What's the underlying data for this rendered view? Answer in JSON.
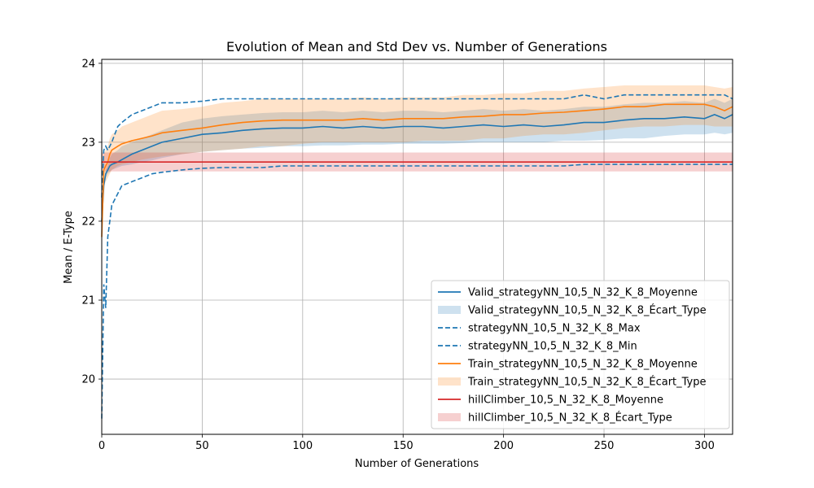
{
  "chart_data": {
    "type": "line",
    "title": "Evolution of Mean and Std Dev vs. Number of Generations",
    "xlabel": "Number of Generations",
    "ylabel": "Mean / E-Type",
    "xlim": [
      0,
      314
    ],
    "ylim": [
      19.3,
      24.05
    ],
    "xticks": [
      0,
      50,
      100,
      150,
      200,
      250,
      300
    ],
    "yticks": [
      20,
      21,
      22,
      23,
      24
    ],
    "grid": true,
    "legend_position": "lower-right",
    "colors": {
      "valid": "#1f77b4",
      "train": "#ff7f0e",
      "hill": "#d62728"
    },
    "series": [
      {
        "name": "Valid_strategyNN_10,5_N_32_K_8_Moyenne",
        "style": "solid",
        "color": "#1f77b4",
        "x": [
          0,
          1,
          2,
          3,
          4,
          5,
          8,
          10,
          15,
          20,
          25,
          30,
          40,
          50,
          60,
          70,
          80,
          90,
          100,
          110,
          120,
          130,
          140,
          150,
          160,
          170,
          180,
          190,
          200,
          210,
          220,
          230,
          240,
          250,
          260,
          270,
          280,
          290,
          300,
          305,
          310,
          314
        ],
        "y": [
          22.0,
          22.45,
          22.6,
          22.65,
          22.7,
          22.72,
          22.75,
          22.78,
          22.85,
          22.9,
          22.95,
          23.0,
          23.05,
          23.1,
          23.12,
          23.15,
          23.17,
          23.18,
          23.18,
          23.2,
          23.18,
          23.2,
          23.18,
          23.2,
          23.2,
          23.18,
          23.2,
          23.22,
          23.2,
          23.22,
          23.2,
          23.22,
          23.25,
          23.25,
          23.28,
          23.3,
          23.3,
          23.32,
          23.3,
          23.35,
          23.3,
          23.35
        ]
      },
      {
        "name": "Valid_strategyNN_10,5_N_32_K_8_Écart_Type",
        "style": "band",
        "color": "#1f77b4",
        "x": [
          0,
          1,
          2,
          3,
          4,
          5,
          8,
          10,
          15,
          20,
          25,
          30,
          40,
          50,
          60,
          70,
          80,
          90,
          100,
          110,
          120,
          130,
          140,
          150,
          160,
          170,
          180,
          190,
          200,
          210,
          220,
          230,
          240,
          250,
          260,
          270,
          280,
          290,
          300,
          305,
          310,
          314
        ],
        "lower": [
          21.8,
          22.5,
          22.55,
          22.6,
          22.62,
          22.65,
          22.68,
          22.7,
          22.72,
          22.75,
          22.77,
          22.8,
          22.85,
          22.88,
          22.9,
          22.92,
          22.93,
          22.95,
          22.95,
          22.96,
          22.96,
          22.97,
          22.97,
          22.98,
          22.98,
          22.98,
          22.99,
          23.0,
          23.0,
          23.0,
          23.0,
          23.02,
          23.02,
          23.03,
          23.05,
          23.05,
          23.08,
          23.1,
          23.1,
          23.12,
          23.1,
          23.12
        ],
        "upper": [
          22.2,
          22.5,
          22.65,
          22.7,
          22.8,
          22.85,
          22.9,
          22.95,
          23.0,
          23.05,
          23.1,
          23.15,
          23.25,
          23.3,
          23.33,
          23.35,
          23.37,
          23.38,
          23.38,
          23.4,
          23.38,
          23.4,
          23.38,
          23.4,
          23.4,
          23.38,
          23.4,
          23.42,
          23.4,
          23.42,
          23.4,
          23.42,
          23.45,
          23.45,
          23.48,
          23.5,
          23.5,
          23.52,
          23.5,
          23.55,
          23.5,
          23.55
        ]
      },
      {
        "name": "strategyNN_10,5_N_32_K_8_Max",
        "style": "dashed",
        "color": "#1f77b4",
        "x": [
          0,
          1,
          2,
          3,
          4,
          5,
          8,
          10,
          15,
          20,
          25,
          30,
          40,
          50,
          60,
          70,
          80,
          90,
          100,
          110,
          120,
          130,
          140,
          150,
          160,
          170,
          180,
          190,
          200,
          210,
          220,
          230,
          240,
          250,
          260,
          270,
          280,
          290,
          300,
          305,
          310,
          314
        ],
        "y": [
          22.3,
          22.9,
          22.95,
          22.9,
          22.95,
          23.0,
          23.2,
          23.25,
          23.35,
          23.4,
          23.45,
          23.5,
          23.5,
          23.52,
          23.55,
          23.55,
          23.55,
          23.55,
          23.55,
          23.55,
          23.55,
          23.55,
          23.55,
          23.55,
          23.55,
          23.55,
          23.55,
          23.55,
          23.55,
          23.55,
          23.55,
          23.55,
          23.6,
          23.55,
          23.6,
          23.6,
          23.6,
          23.6,
          23.6,
          23.6,
          23.6,
          23.55
        ]
      },
      {
        "name": "strategyNN_10,5_N_32_K_8_Min",
        "style": "dashed",
        "color": "#1f77b4",
        "x": [
          0,
          1,
          2,
          3,
          4,
          5,
          8,
          10,
          15,
          20,
          25,
          30,
          40,
          50,
          60,
          70,
          80,
          90,
          100,
          110,
          120,
          130,
          140,
          150,
          160,
          170,
          180,
          190,
          200,
          210,
          220,
          230,
          240,
          250,
          260,
          270,
          280,
          290,
          300,
          305,
          310,
          314
        ],
        "y": [
          19.5,
          21.2,
          20.9,
          21.8,
          22.0,
          22.2,
          22.35,
          22.45,
          22.5,
          22.55,
          22.6,
          22.62,
          22.65,
          22.67,
          22.68,
          22.68,
          22.68,
          22.7,
          22.7,
          22.7,
          22.7,
          22.7,
          22.7,
          22.7,
          22.7,
          22.7,
          22.7,
          22.7,
          22.7,
          22.7,
          22.7,
          22.7,
          22.72,
          22.72,
          22.72,
          22.72,
          22.72,
          22.72,
          22.72,
          22.72,
          22.72,
          22.72
        ]
      },
      {
        "name": "Train_strategyNN_10,5_N_32_K_8_Moyenne",
        "style": "solid",
        "color": "#ff7f0e",
        "x": [
          0,
          1,
          2,
          3,
          4,
          5,
          8,
          10,
          15,
          20,
          25,
          30,
          40,
          50,
          60,
          70,
          80,
          90,
          100,
          110,
          120,
          130,
          140,
          150,
          160,
          170,
          180,
          190,
          200,
          210,
          220,
          230,
          240,
          250,
          260,
          270,
          280,
          290,
          300,
          305,
          310,
          314
        ],
        "y": [
          21.8,
          22.65,
          22.7,
          22.75,
          22.85,
          22.9,
          22.95,
          22.98,
          23.02,
          23.05,
          23.08,
          23.12,
          23.15,
          23.18,
          23.22,
          23.25,
          23.27,
          23.28,
          23.28,
          23.28,
          23.28,
          23.3,
          23.28,
          23.3,
          23.3,
          23.3,
          23.32,
          23.33,
          23.35,
          23.35,
          23.37,
          23.38,
          23.4,
          23.42,
          23.45,
          23.45,
          23.48,
          23.48,
          23.48,
          23.45,
          23.4,
          23.45
        ]
      },
      {
        "name": "Train_strategyNN_10,5_N_32_K_8_Écart_Type",
        "style": "band",
        "color": "#ff7f0e",
        "x": [
          0,
          1,
          2,
          3,
          4,
          5,
          8,
          10,
          15,
          20,
          25,
          30,
          40,
          50,
          60,
          70,
          80,
          90,
          100,
          110,
          120,
          130,
          140,
          150,
          160,
          170,
          180,
          190,
          200,
          210,
          220,
          230,
          240,
          250,
          260,
          270,
          280,
          290,
          300,
          305,
          310,
          314
        ],
        "lower": [
          21.7,
          22.45,
          22.5,
          22.55,
          22.6,
          22.65,
          22.7,
          22.72,
          22.75,
          22.78,
          22.8,
          22.82,
          22.85,
          22.88,
          22.9,
          22.92,
          22.95,
          22.95,
          22.98,
          23.0,
          23.0,
          23.0,
          23.0,
          23.0,
          23.02,
          23.02,
          23.02,
          23.05,
          23.05,
          23.08,
          23.1,
          23.1,
          23.12,
          23.15,
          23.18,
          23.2,
          23.2,
          23.22,
          23.22,
          23.2,
          23.2,
          23.2
        ],
        "upper": [
          21.9,
          22.85,
          22.9,
          22.95,
          23.05,
          23.1,
          23.15,
          23.2,
          23.25,
          23.3,
          23.35,
          23.4,
          23.42,
          23.45,
          23.5,
          23.52,
          23.55,
          23.55,
          23.55,
          23.55,
          23.55,
          23.57,
          23.55,
          23.57,
          23.57,
          23.57,
          23.6,
          23.6,
          23.62,
          23.62,
          23.65,
          23.65,
          23.68,
          23.7,
          23.72,
          23.72,
          23.72,
          23.72,
          23.72,
          23.7,
          23.68,
          23.7
        ]
      },
      {
        "name": "hillClimber_10,5_N_32_K_8_Moyenne",
        "style": "solid",
        "color": "#d62728",
        "x": [
          0,
          314
        ],
        "y": [
          22.75,
          22.75
        ]
      },
      {
        "name": "hillClimber_10,5_N_32_K_8_Écart_Type",
        "style": "band",
        "color": "#d62728",
        "x": [
          0,
          314
        ],
        "lower": [
          22.63,
          22.63
        ],
        "upper": [
          22.87,
          22.87
        ]
      }
    ]
  }
}
